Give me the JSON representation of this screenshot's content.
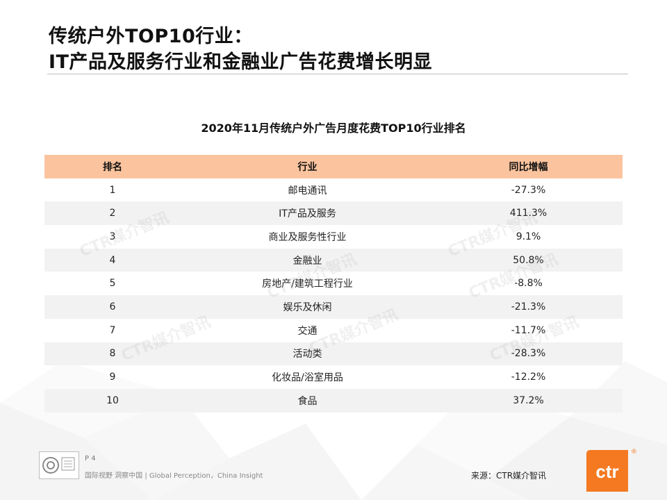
{
  "title": {
    "line1": "传统户外TOP10行业：",
    "line2": "IT产品及服务行业和金融业广告花费增长明显"
  },
  "table": {
    "title": "2020年11月传统户外广告月度花费TOP10行业排名",
    "headers": [
      "排名",
      "行业",
      "同比增幅"
    ],
    "rows": [
      [
        "1",
        "邮电通讯",
        "-27.3%"
      ],
      [
        "2",
        "IT产品及服务",
        "411.3%"
      ],
      [
        "3",
        "商业及服务性行业",
        "9.1%"
      ],
      [
        "4",
        "金融业",
        "50.8%"
      ],
      [
        "5",
        "房地产/建筑工程行业",
        "-8.8%"
      ],
      [
        "6",
        "娱乐及休闲",
        "-21.3%"
      ],
      [
        "7",
        "交通",
        "-11.7%"
      ],
      [
        "8",
        "活动类",
        "-28.3%"
      ],
      [
        "9",
        "化妆品/浴室用品",
        "-12.2%"
      ],
      [
        "10",
        "食品",
        "37.2%"
      ]
    ]
  },
  "watermark": "CTR媒介智讯",
  "footer": {
    "page": "P 4",
    "tagline": "国际视野 洞察中国 | Global Perception，China Insight",
    "source": "来源：CTR媒介智讯",
    "logo_text": "ctr",
    "reg": "®"
  },
  "colors": {
    "header_bg": "#fbc49e",
    "stripe": "#f2f2f2",
    "brand_orange": "#f47920"
  }
}
